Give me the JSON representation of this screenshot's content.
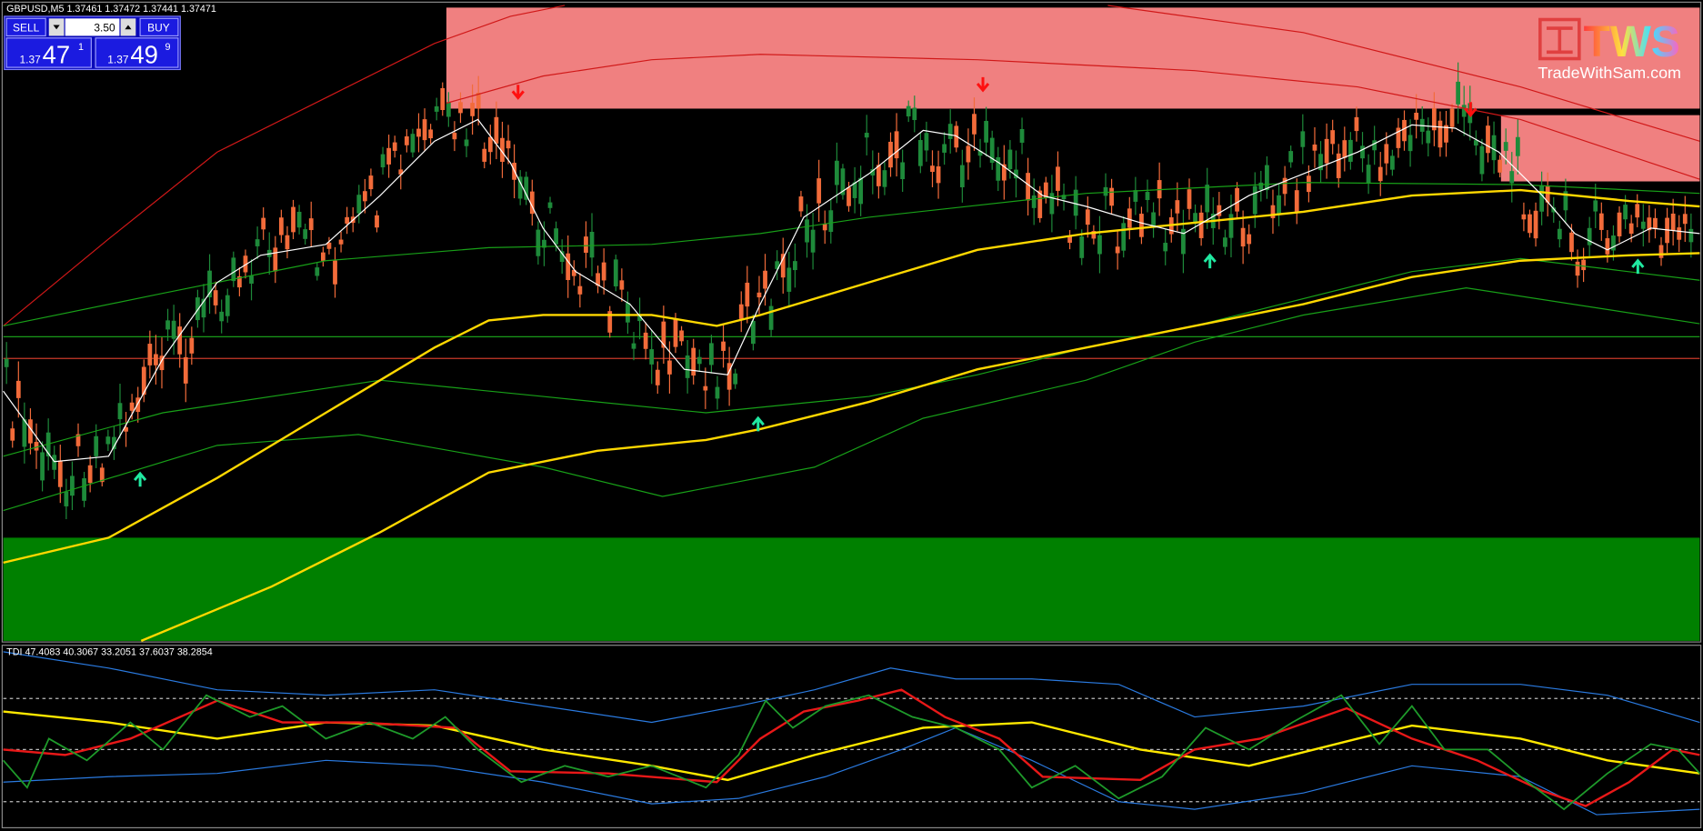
{
  "header": {
    "symbol_info": "GBPUSD,M5  1.37461 1.37472 1.37441 1.37471"
  },
  "trade_panel": {
    "sell_label": "SELL",
    "lot": "3.50",
    "buy_label": "BUY",
    "sell_price": {
      "prefix": "1.37",
      "big": "47",
      "small": "1"
    },
    "buy_price": {
      "prefix": "1.37",
      "big": "49",
      "small": "9"
    }
  },
  "logo": {
    "mark": "TWS",
    "site": "TradeWithSam.com"
  },
  "indicator": {
    "label": "TDI 47.4083 40.3067 33.2051 37.6037 38.2854"
  }
}
